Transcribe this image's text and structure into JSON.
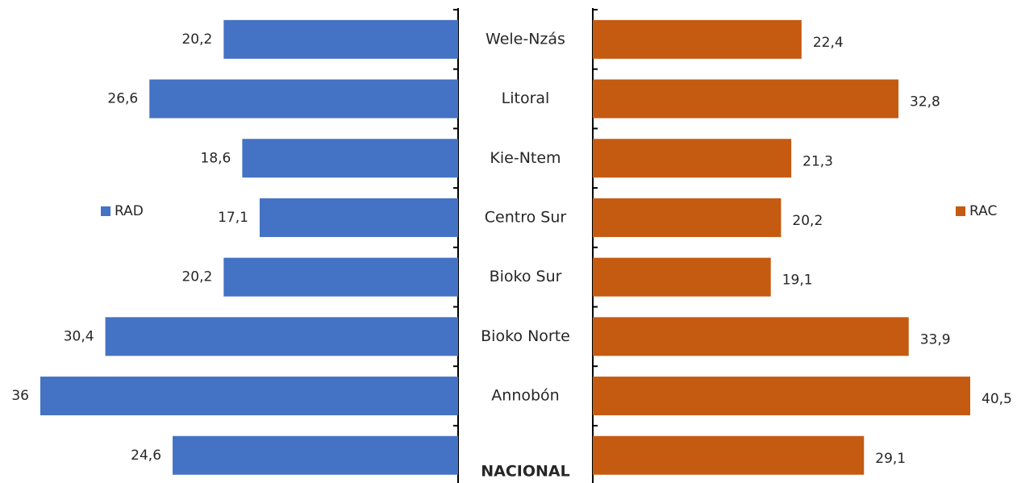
{
  "chart_data": {
    "type": "butterfly-bar",
    "categories": [
      "Wele-Nzás",
      "Litoral",
      "Kie-Ntem",
      "Centro Sur",
      "Bioko Sur",
      "Bioko Norte",
      "Annobón",
      "NACIONAL"
    ],
    "series": [
      {
        "name": "RAD",
        "color": "#4472c4",
        "values": [
          20.2,
          26.6,
          18.6,
          17.1,
          20.2,
          30.4,
          36,
          24.6
        ],
        "value_labels": [
          "20,2",
          "26,6",
          "18,6",
          "17,1",
          "20,2",
          "30,4",
          "36",
          "24,6"
        ]
      },
      {
        "name": "RAC",
        "color": "#c55a11",
        "values": [
          22.4,
          32.8,
          21.3,
          20.2,
          19.1,
          33.9,
          40.5,
          29.1
        ],
        "value_labels": [
          "22,4",
          "32,8",
          "21,3",
          "20,2",
          "19,1",
          "33,9",
          "40,5",
          "29,1"
        ]
      }
    ]
  }
}
